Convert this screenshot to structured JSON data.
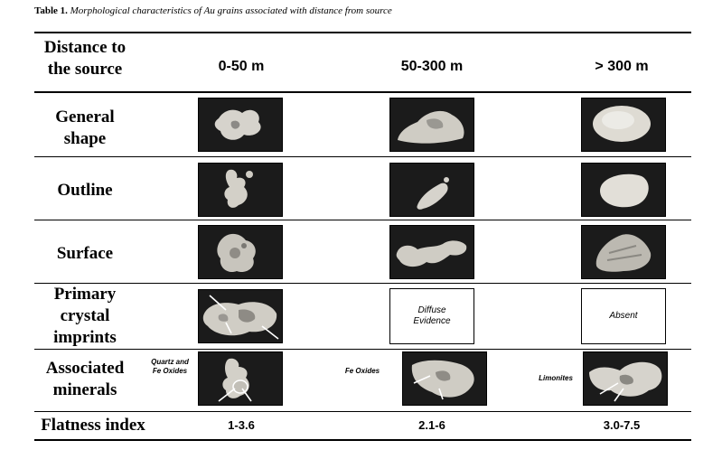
{
  "caption": {
    "label": "Table 1.",
    "text": "Morphological characteristics of Au grains associated with distance from source"
  },
  "header": {
    "row_title": "Distance to the source",
    "columns": [
      "0-50 m",
      "50-300 m",
      "> 300 m"
    ]
  },
  "rows": {
    "general_shape": "General shape",
    "outline": "Outline",
    "surface": "Surface",
    "primary_crystal_imprints": "Primary crystal imprints",
    "associated_minerals": "Associated minerals",
    "flatness_index": "Flatness index"
  },
  "cells": {
    "imprints_col2": "Diffuse Evidence",
    "imprints_col3": "Absent"
  },
  "mineral_labels": {
    "col1": "Quartz and Fe Oxides",
    "col2": "Fe Oxides",
    "col3": "Limonites"
  },
  "flatness": [
    "1-3.6",
    "2.1-6",
    "3.0-7.5"
  ]
}
